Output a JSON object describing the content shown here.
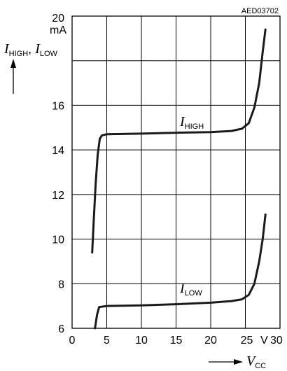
{
  "chart_data": {
    "type": "line",
    "figure_code": "AED03702",
    "xlim": [
      0,
      30
    ],
    "ylim": [
      6,
      20
    ],
    "x_ticks": [
      {
        "value": 0,
        "label": "0"
      },
      {
        "value": 5,
        "label": "5"
      },
      {
        "value": 10,
        "label": "10"
      },
      {
        "value": 15,
        "label": "15"
      },
      {
        "value": 20,
        "label": "20"
      },
      {
        "value": 25,
        "label": "25"
      },
      {
        "value": 30,
        "label": "30"
      }
    ],
    "x_unit": "V",
    "y_ticks": [
      {
        "value": 6,
        "label": "6"
      },
      {
        "value": 8,
        "label": "8"
      },
      {
        "value": 10,
        "label": "10"
      },
      {
        "value": 12,
        "label": "12"
      },
      {
        "value": 14,
        "label": "14"
      },
      {
        "value": 16,
        "label": "16"
      },
      {
        "value": 20,
        "label": "20"
      }
    ],
    "y_unit": "mA",
    "y_label": {
      "main1": "I",
      "sub1": "HIGH",
      "sep": ", ",
      "main2": "I",
      "sub2": "LOW"
    },
    "x_label": {
      "main": "V",
      "sub": "CC"
    },
    "grid": true,
    "series": [
      {
        "name": {
          "main": "I",
          "sub": "HIGH"
        },
        "points": [
          [
            2.9,
            9.4
          ],
          [
            3.1,
            10.7
          ],
          [
            3.4,
            12.5
          ],
          [
            3.7,
            13.8
          ],
          [
            4.0,
            14.5
          ],
          [
            4.3,
            14.65
          ],
          [
            5.0,
            14.7
          ],
          [
            10,
            14.73
          ],
          [
            15,
            14.77
          ],
          [
            20,
            14.8
          ],
          [
            23,
            14.85
          ],
          [
            24.5,
            14.95
          ],
          [
            25.5,
            15.2
          ],
          [
            26.3,
            15.9
          ],
          [
            27.0,
            17.0
          ],
          [
            27.5,
            18.4
          ],
          [
            27.9,
            19.4
          ]
        ]
      },
      {
        "name": {
          "main": "I",
          "sub": "LOW"
        },
        "points": [
          [
            3.3,
            6.0
          ],
          [
            3.6,
            6.6
          ],
          [
            3.9,
            6.95
          ],
          [
            5.0,
            7.0
          ],
          [
            10,
            7.03
          ],
          [
            15,
            7.08
          ],
          [
            20,
            7.15
          ],
          [
            23,
            7.22
          ],
          [
            24.5,
            7.3
          ],
          [
            25.5,
            7.5
          ],
          [
            26.3,
            8.0
          ],
          [
            27.0,
            9.0
          ],
          [
            27.5,
            10.0
          ],
          [
            27.9,
            11.1
          ]
        ]
      }
    ]
  }
}
